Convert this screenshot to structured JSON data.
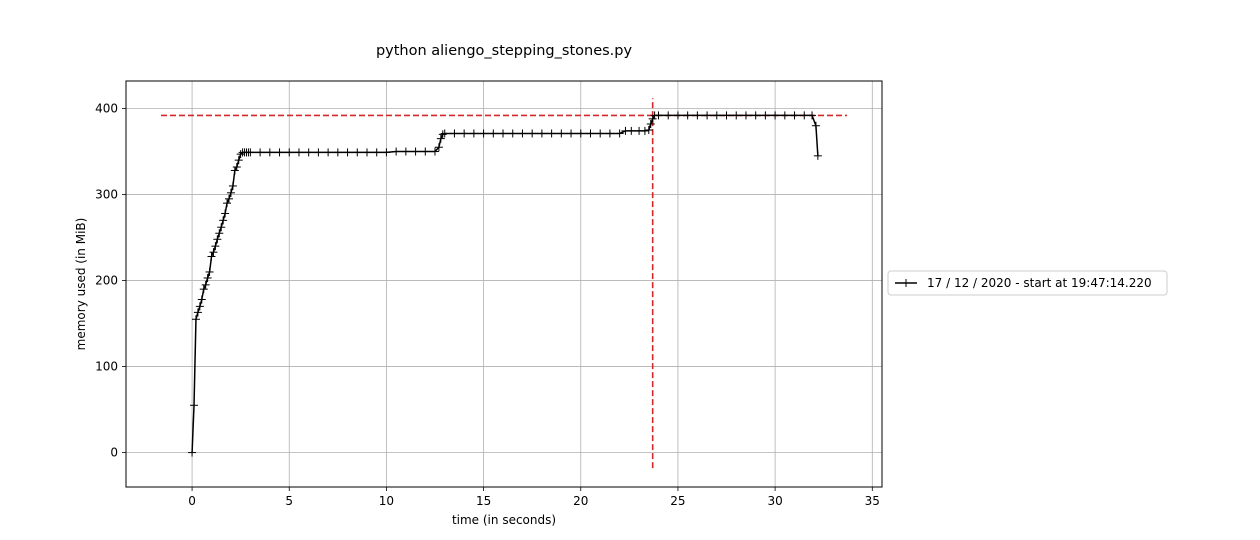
{
  "chart_data": {
    "type": "line",
    "title": "python aliengo_stepping_stones.py",
    "xlabel": "time (in seconds)",
    "ylabel": "memory used (in MiB)",
    "xlim": [
      -3.4,
      35.5
    ],
    "ylim": [
      -40,
      432
    ],
    "xticks": [
      0,
      5,
      10,
      15,
      20,
      25,
      30,
      35
    ],
    "yticks": [
      0,
      100,
      200,
      300,
      400
    ],
    "grid": true,
    "legend_position": "outside-right",
    "line_color": "#000000",
    "marker": "+",
    "series": [
      {
        "name": "17 / 12 / 2020 - start at 19:47:14.220",
        "x": [
          0.0,
          0.1,
          0.2,
          0.3,
          0.4,
          0.5,
          0.6,
          0.7,
          0.8,
          0.9,
          1.0,
          1.1,
          1.2,
          1.3,
          1.4,
          1.5,
          1.6,
          1.7,
          1.8,
          1.9,
          2.0,
          2.1,
          2.2,
          2.3,
          2.4,
          2.5,
          2.6,
          2.7,
          2.8,
          2.9,
          3.0,
          3.5,
          4.0,
          4.5,
          5.0,
          5.5,
          6.0,
          6.5,
          7.0,
          7.5,
          8.0,
          8.5,
          9.0,
          9.5,
          10.0,
          10.5,
          11.0,
          11.5,
          12.0,
          12.5,
          12.7,
          12.8,
          12.9,
          13.0,
          13.5,
          14.0,
          14.5,
          15.0,
          15.5,
          16.0,
          16.5,
          17.0,
          17.5,
          18.0,
          18.5,
          19.0,
          19.5,
          20.0,
          20.5,
          21.0,
          21.5,
          22.0,
          22.3,
          22.6,
          23.0,
          23.3,
          23.5,
          23.6,
          23.7,
          23.8,
          24.0,
          24.5,
          25.0,
          25.5,
          26.0,
          26.5,
          27.0,
          27.5,
          28.0,
          28.5,
          29.0,
          29.5,
          30.0,
          30.5,
          31.0,
          31.5,
          31.9,
          32.1,
          32.2
        ],
        "y": [
          0,
          55,
          155,
          163,
          170,
          178,
          190,
          195,
          203,
          210,
          228,
          233,
          240,
          248,
          255,
          262,
          270,
          278,
          290,
          295,
          302,
          310,
          328,
          332,
          340,
          347,
          349,
          349,
          349,
          349,
          349,
          349,
          349,
          349,
          349,
          349,
          349,
          349,
          349,
          349,
          349,
          349,
          349,
          349,
          349,
          350,
          350,
          350,
          350,
          350,
          355,
          365,
          370,
          371,
          371,
          371,
          371,
          371,
          371,
          371,
          371,
          371,
          371,
          371,
          371,
          371,
          371,
          371,
          371,
          371,
          371,
          371,
          374,
          374,
          374,
          374,
          375,
          382,
          388,
          392,
          392,
          392,
          392,
          392,
          392,
          392,
          392,
          392,
          392,
          392,
          392,
          392,
          392,
          392,
          392,
          392,
          392,
          380,
          345
        ]
      }
    ],
    "reference_lines": {
      "color": "#d62728",
      "horizontal": {
        "y": 392,
        "x_from": -1.6,
        "x_to": 33.7
      },
      "vertical": {
        "x": 23.7,
        "y_from": -18,
        "y_to": 412
      }
    }
  }
}
